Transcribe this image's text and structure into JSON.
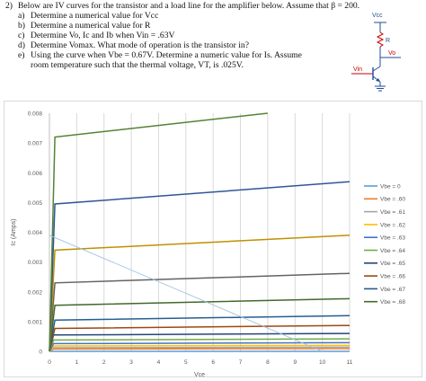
{
  "problem": {
    "number": "2)",
    "statement": "Below are IV curves for the transistor and a load line for the amplifier below.  Assume that β = 200.",
    "parts": [
      {
        "letter": "a)",
        "text": "Determine a numerical value for Vcc"
      },
      {
        "letter": "b)",
        "text": "Determine a numerical value for R"
      },
      {
        "letter": "c)",
        "text": "Determine Vo, Ic and Ib when Vin = .63V"
      },
      {
        "letter": "d)",
        "text": "Determine Vomax.  What mode of operation is the transistor in?"
      },
      {
        "letter": "e)",
        "text": "Using the curve when Vbe = 0.67V. Determine a numeric value for Is.  Assume",
        "continuation": "room temperature such that the thermal voltage, VT, is .025V."
      }
    ]
  },
  "circuit": {
    "vcc_label": "Vcc",
    "r_label": "R",
    "vo_label": "Vo",
    "vin_label": "Vin",
    "accent_color": "#cc0000",
    "wire_color": "#1f4e9a"
  },
  "chart_data": {
    "type": "line",
    "title": "",
    "xlabel": "Vce",
    "ylabel": "Ic (Amps)",
    "xlim": [
      0,
      11
    ],
    "ylim": [
      0,
      0.008
    ],
    "x_ticks": [
      "0",
      "1",
      "2",
      "3",
      "4",
      "5",
      "6",
      "7",
      "8",
      "9",
      "10",
      "11"
    ],
    "y_ticks": [
      "0",
      "0.001",
      "0.002",
      "0.003",
      "0.004",
      "0.005",
      "0.006",
      "0.007",
      "0.008"
    ],
    "grid": "vertical",
    "legend_position": "right",
    "series": [
      {
        "name": "Vbe = 0",
        "color": "#5b9bd5",
        "x": [
          0,
          11
        ],
        "y": [
          0,
          0
        ]
      },
      {
        "name": "Vbe = .60",
        "color": "#ed7d31",
        "x": [
          0,
          0.15,
          11
        ],
        "y": [
          0,
          8e-05,
          9e-05
        ]
      },
      {
        "name": "Vbe = .61",
        "color": "#a5a5a5",
        "x": [
          0,
          0.15,
          11
        ],
        "y": [
          0,
          0.00012,
          0.00014
        ]
      },
      {
        "name": "Vbe = .62",
        "color": "#ffc000",
        "x": [
          0,
          0.15,
          11
        ],
        "y": [
          0,
          0.00018,
          0.0002
        ]
      },
      {
        "name": "Vbe = .63",
        "color": "#4472c4",
        "x": [
          0,
          0.15,
          11
        ],
        "y": [
          0,
          0.00026,
          0.00029
        ]
      },
      {
        "name": "Vbe = .64",
        "color": "#70ad47",
        "x": [
          0,
          0.15,
          11
        ],
        "y": [
          0,
          0.00038,
          0.00042
        ]
      },
      {
        "name": "Vbe = .65",
        "color": "#264478",
        "x": [
          0,
          0.15,
          11
        ],
        "y": [
          0,
          0.00055,
          0.0006
        ]
      },
      {
        "name": "Vbe = .66",
        "color": "#9e480e",
        "x": [
          0,
          0.2,
          11
        ],
        "y": [
          0,
          0.00077,
          0.00087
        ]
      },
      {
        "name": "Vbe = .67",
        "color": "#255e91",
        "x": [
          0,
          0.2,
          11
        ],
        "y": [
          0,
          0.00105,
          0.0012
        ]
      },
      {
        "name": "Vbe = .68",
        "color": "#43682b",
        "x": [
          0,
          0.2,
          11
        ],
        "y": [
          0,
          0.00155,
          0.00177
        ]
      },
      {
        "name": "",
        "color": "#636363",
        "x": [
          0,
          0.2,
          11
        ],
        "y": [
          0,
          0.0023,
          0.00262
        ]
      },
      {
        "name": "",
        "color": "#c09000",
        "x": [
          0,
          0.2,
          11
        ],
        "y": [
          0,
          0.0034,
          0.0039
        ]
      },
      {
        "name": "",
        "color": "#2f5597",
        "x": [
          0,
          0.2,
          11
        ],
        "y": [
          0,
          0.00495,
          0.0057
        ]
      },
      {
        "name": "",
        "color": "#548235",
        "x": [
          0,
          0.2,
          8
        ],
        "y": [
          0,
          0.0072,
          0.008
        ]
      },
      {
        "name": "",
        "color": "#9dc3e6",
        "x": [
          0,
          10
        ],
        "y": [
          0.0039,
          0
        ]
      }
    ]
  }
}
